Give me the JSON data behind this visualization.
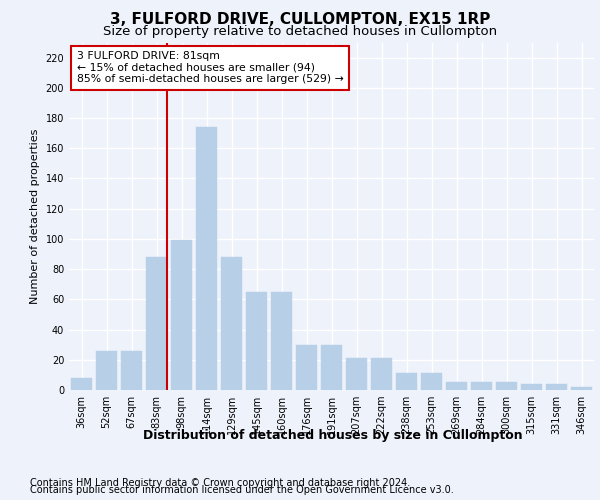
{
  "title": "3, FULFORD DRIVE, CULLOMPTON, EX15 1RP",
  "subtitle": "Size of property relative to detached houses in Cullompton",
  "xlabel": "Distribution of detached houses by size in Cullompton",
  "ylabel": "Number of detached properties",
  "categories": [
    "36sqm",
    "52sqm",
    "67sqm",
    "83sqm",
    "98sqm",
    "114sqm",
    "129sqm",
    "145sqm",
    "160sqm",
    "176sqm",
    "191sqm",
    "207sqm",
    "222sqm",
    "238sqm",
    "253sqm",
    "269sqm",
    "284sqm",
    "300sqm",
    "315sqm",
    "331sqm",
    "346sqm"
  ],
  "values": [
    8,
    26,
    26,
    88,
    99,
    174,
    88,
    65,
    65,
    30,
    30,
    21,
    21,
    11,
    11,
    5,
    5,
    5,
    4,
    4,
    2
  ],
  "bar_color": "#b8cfe8",
  "bar_edgecolor": "#b8cfe8",
  "highlight_index": 3,
  "red_line_color": "#cc0000",
  "ylim": [
    0,
    230
  ],
  "yticks": [
    0,
    20,
    40,
    60,
    80,
    100,
    120,
    140,
    160,
    180,
    200,
    220
  ],
  "annotation_text": "3 FULFORD DRIVE: 81sqm\n← 15% of detached houses are smaller (94)\n85% of semi-detached houses are larger (529) →",
  "annotation_box_color": "#ffffff",
  "annotation_box_edgecolor": "#cc0000",
  "footer1": "Contains HM Land Registry data © Crown copyright and database right 2024.",
  "footer2": "Contains public sector information licensed under the Open Government Licence v3.0.",
  "bg_color": "#eef2fb",
  "plot_bg_color": "#eef2fb",
  "grid_color": "#ffffff",
  "title_fontsize": 11,
  "subtitle_fontsize": 9.5,
  "xlabel_fontsize": 9,
  "ylabel_fontsize": 8,
  "tick_fontsize": 7,
  "footer_fontsize": 7
}
